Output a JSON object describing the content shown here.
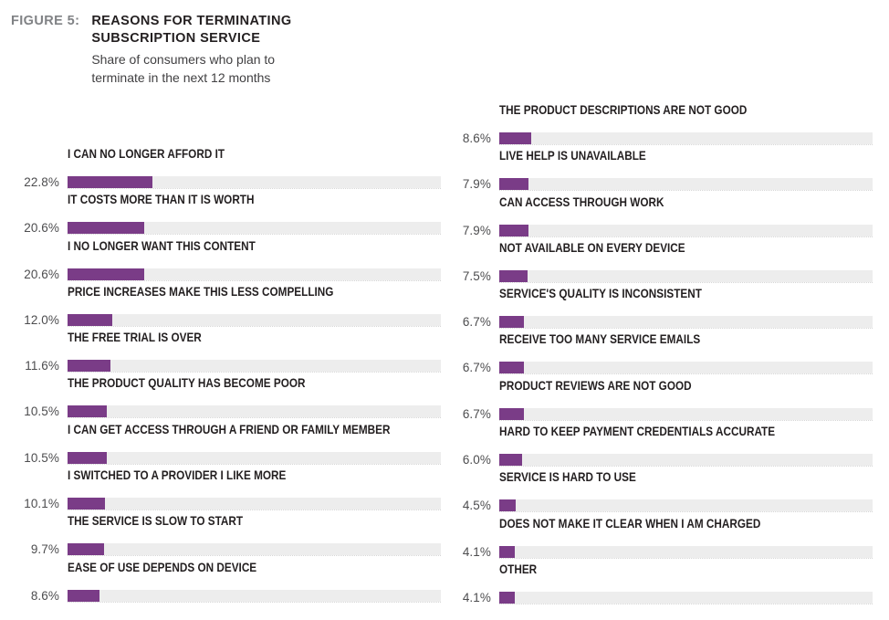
{
  "header": {
    "figure_label": "FIGURE 5:",
    "title_lines": [
      "REASONS FOR TERMINATING",
      "SUBSCRIPTION SERVICE"
    ],
    "subtitle_lines": [
      "Share of consumers who plan to",
      "terminate in the next 12 months"
    ]
  },
  "chart_data": {
    "type": "bar",
    "orientation": "horizontal",
    "value_unit": "percent",
    "axis_range": [
      0,
      100
    ],
    "bar_color": "#7a3c87",
    "track_color": "#ededed",
    "grid": false,
    "legend": "none",
    "columns": [
      {
        "name": "left",
        "items": [
          {
            "label": "I CAN NO LONGER AFFORD IT",
            "value": 22.8,
            "value_label": "22.8%"
          },
          {
            "label": "IT COSTS MORE THAN IT IS WORTH",
            "value": 20.6,
            "value_label": "20.6%"
          },
          {
            "label": "I NO LONGER WANT THIS CONTENT",
            "value": 20.6,
            "value_label": "20.6%"
          },
          {
            "label": "PRICE INCREASES MAKE THIS LESS COMPELLING",
            "value": 12.0,
            "value_label": "12.0%"
          },
          {
            "label": "THE FREE TRIAL IS OVER",
            "value": 11.6,
            "value_label": "11.6%"
          },
          {
            "label": "THE PRODUCT QUALITY HAS BECOME POOR",
            "value": 10.5,
            "value_label": "10.5%"
          },
          {
            "label": "I CAN GET ACCESS THROUGH A FRIEND OR FAMILY MEMBER",
            "value": 10.5,
            "value_label": "10.5%"
          },
          {
            "label": "I SWITCHED TO A PROVIDER I LIKE MORE",
            "value": 10.1,
            "value_label": "10.1%"
          },
          {
            "label": "THE SERVICE IS SLOW TO START",
            "value": 9.7,
            "value_label": "9.7%"
          },
          {
            "label": "EASE OF USE DEPENDS ON DEVICE",
            "value": 8.6,
            "value_label": "8.6%"
          }
        ]
      },
      {
        "name": "right",
        "items": [
          {
            "label": "THE PRODUCT DESCRIPTIONS ARE NOT GOOD",
            "value": 8.6,
            "value_label": "8.6%"
          },
          {
            "label": "LIVE HELP IS UNAVAILABLE",
            "value": 7.9,
            "value_label": "7.9%"
          },
          {
            "label": "CAN ACCESS THROUGH WORK",
            "value": 7.9,
            "value_label": "7.9%"
          },
          {
            "label": "NOT AVAILABLE ON EVERY DEVICE",
            "value": 7.5,
            "value_label": "7.5%"
          },
          {
            "label": "SERVICE'S QUALITY IS INCONSISTENT",
            "value": 6.7,
            "value_label": "6.7%"
          },
          {
            "label": "RECEIVE TOO MANY SERVICE EMAILS",
            "value": 6.7,
            "value_label": "6.7%"
          },
          {
            "label": "PRODUCT REVIEWS ARE NOT GOOD",
            "value": 6.7,
            "value_label": "6.7%"
          },
          {
            "label": "HARD TO KEEP PAYMENT CREDENTIALS ACCURATE",
            "value": 6.0,
            "value_label": "6.0%"
          },
          {
            "label": "SERVICE IS HARD TO USE",
            "value": 4.5,
            "value_label": "4.5%"
          },
          {
            "label": "DOES NOT MAKE IT CLEAR WHEN I AM CHARGED",
            "value": 4.1,
            "value_label": "4.1%"
          },
          {
            "label": "OTHER",
            "value": 4.1,
            "value_label": "4.1%"
          }
        ]
      }
    ]
  }
}
